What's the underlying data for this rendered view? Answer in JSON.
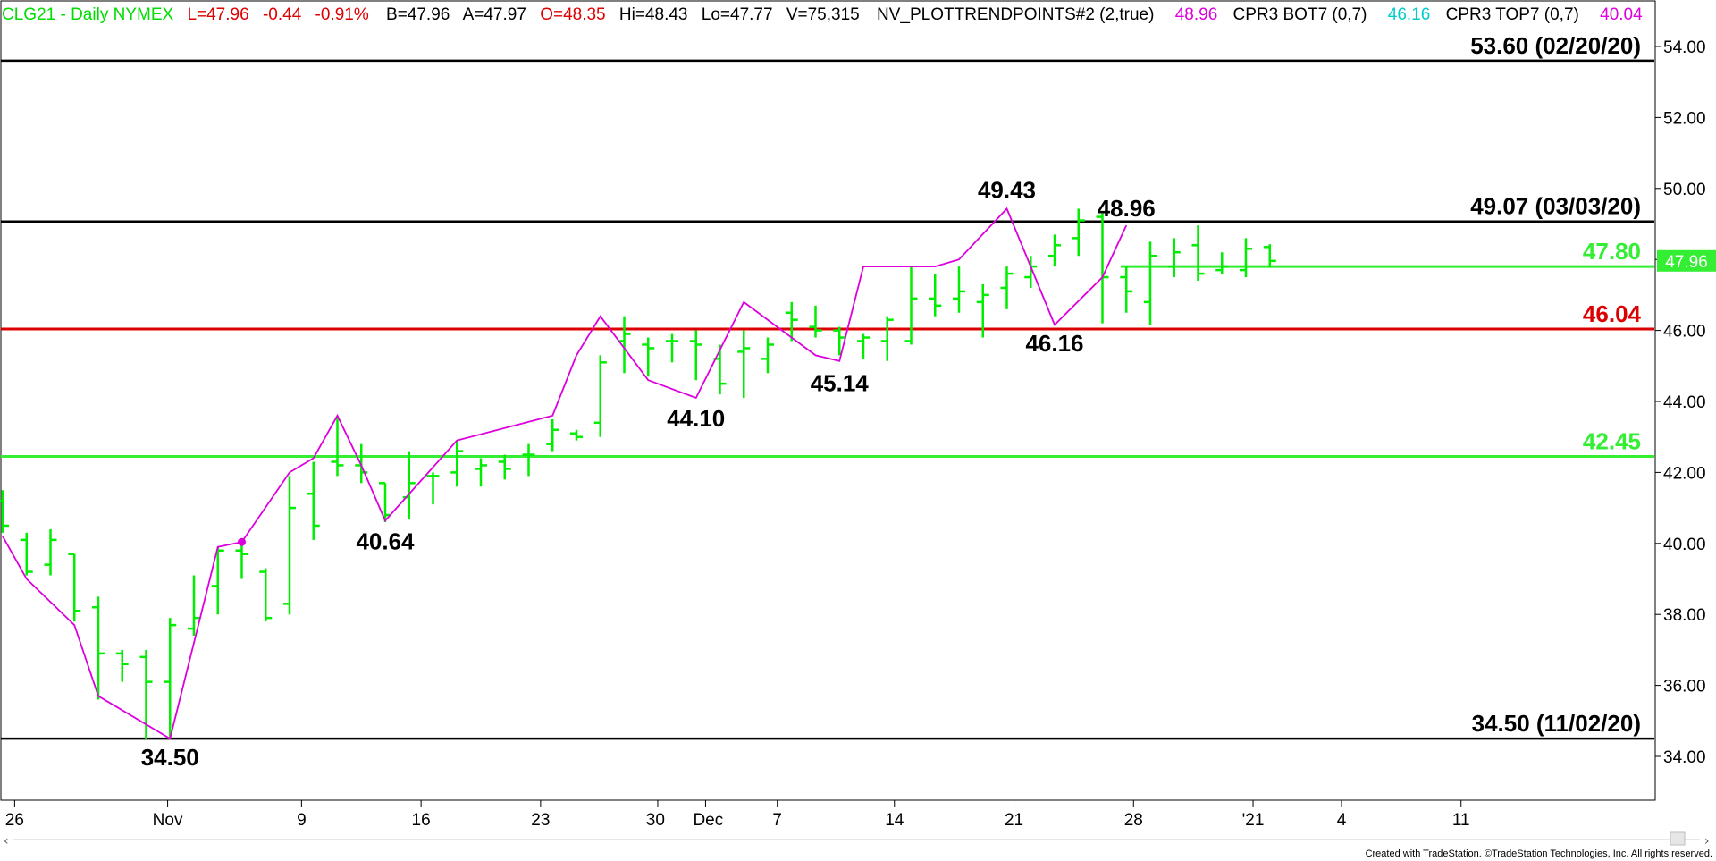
{
  "header": {
    "symbol": "CLG21 - Daily  NYMEX",
    "last": "L=47.96",
    "change": "-0.44",
    "change_pct": "-0.91%",
    "bid": "B=47.96",
    "ask": "A=47.97",
    "open": "O=48.35",
    "high": "Hi=48.43",
    "low": "Lo=47.77",
    "volume": "V=75,315",
    "study1_name": "NV_PLOTTRENDPOINTS#2 (2,true)",
    "study1_value": "48.96",
    "study2_name": "CPR3 BOT7 (0,7)",
    "study2_value": "46.16",
    "study3_name": "CPR3 TOP7 (0,7)",
    "study3_value": "40.04"
  },
  "footer": {
    "credit": "Created with TradeStation. ©TradeStation Technologies, Inc. All rights reserved."
  },
  "colors": {
    "bars": "#00ee00",
    "zigzag": "#dd00dd",
    "support_line": "#dd0000",
    "green_line": "#33ee33",
    "black_line": "#000000",
    "last_price_box": "#33ee33",
    "header_red": "#dd0000",
    "header_magenta": "#dd00dd",
    "header_cyan": "#00cccc"
  },
  "chart_data": {
    "type": "ohlc",
    "ylim": [
      33.0,
      55.5
    ],
    "y_ticks": [
      "34.00",
      "36.00",
      "38.00",
      "40.00",
      "42.00",
      "44.00",
      "46.00",
      "48.00",
      "50.00",
      "52.00",
      "54.00"
    ],
    "x_ticks": [
      "26",
      "Nov",
      "9",
      "16",
      "23",
      "30",
      "Dec",
      "7",
      "14",
      "21",
      "28",
      "'21",
      "4",
      "11"
    ],
    "last_price_label": "47.96",
    "bars": [
      {
        "o": 41.2,
        "h": 41.5,
        "l": 40.3,
        "c": 40.5
      },
      {
        "o": 40.1,
        "h": 40.3,
        "l": 39.1,
        "c": 39.2
      },
      {
        "o": 39.4,
        "h": 40.4,
        "l": 39.1,
        "c": 40.1
      },
      {
        "o": 39.7,
        "h": 39.7,
        "l": 37.8,
        "c": 38.1
      },
      {
        "o": 38.2,
        "h": 38.5,
        "l": 35.6,
        "c": 36.9
      },
      {
        "o": 36.9,
        "h": 37.0,
        "l": 36.1,
        "c": 36.6
      },
      {
        "o": 36.8,
        "h": 37.0,
        "l": 34.5,
        "c": 36.1
      },
      {
        "o": 36.1,
        "h": 37.9,
        "l": 34.5,
        "c": 37.7
      },
      {
        "o": 37.6,
        "h": 39.1,
        "l": 37.4,
        "c": 37.9
      },
      {
        "o": 38.8,
        "h": 39.9,
        "l": 38.0,
        "c": 39.8
      },
      {
        "o": 39.8,
        "h": 40.0,
        "l": 39.0,
        "c": 39.7
      },
      {
        "o": 39.2,
        "h": 39.3,
        "l": 37.8,
        "c": 37.9
      },
      {
        "o": 38.3,
        "h": 41.9,
        "l": 38.0,
        "c": 41.0
      },
      {
        "o": 41.4,
        "h": 42.3,
        "l": 40.1,
        "c": 40.5
      },
      {
        "o": 42.3,
        "h": 43.6,
        "l": 41.9,
        "c": 42.2
      },
      {
        "o": 42.2,
        "h": 42.8,
        "l": 41.7,
        "c": 42.0
      },
      {
        "o": 41.7,
        "h": 41.7,
        "l": 40.6,
        "c": 40.8
      },
      {
        "o": 41.3,
        "h": 42.6,
        "l": 40.7,
        "c": 41.7
      },
      {
        "o": 41.9,
        "h": 42.0,
        "l": 41.1,
        "c": 41.9
      },
      {
        "o": 42.0,
        "h": 42.9,
        "l": 41.6,
        "c": 42.6
      },
      {
        "o": 42.1,
        "h": 42.4,
        "l": 41.6,
        "c": 42.2
      },
      {
        "o": 42.3,
        "h": 42.5,
        "l": 41.8,
        "c": 42.1
      },
      {
        "o": 42.5,
        "h": 42.8,
        "l": 41.9,
        "c": 42.5
      },
      {
        "o": 42.8,
        "h": 43.5,
        "l": 42.6,
        "c": 43.2
      },
      {
        "o": 43.1,
        "h": 43.2,
        "l": 42.9,
        "c": 43.0
      },
      {
        "o": 43.4,
        "h": 45.3,
        "l": 43.0,
        "c": 45.1
      },
      {
        "o": 45.7,
        "h": 46.4,
        "l": 44.8,
        "c": 45.9
      },
      {
        "o": 45.6,
        "h": 45.8,
        "l": 44.7,
        "c": 45.5
      },
      {
        "o": 45.7,
        "h": 45.9,
        "l": 45.1,
        "c": 45.7
      },
      {
        "o": 45.7,
        "h": 46.0,
        "l": 44.6,
        "c": 45.6
      },
      {
        "o": 45.2,
        "h": 45.6,
        "l": 44.2,
        "c": 44.5
      },
      {
        "o": 45.4,
        "h": 46.0,
        "l": 44.1,
        "c": 45.5
      },
      {
        "o": 45.2,
        "h": 45.8,
        "l": 44.8,
        "c": 45.6
      },
      {
        "o": 46.5,
        "h": 46.8,
        "l": 45.7,
        "c": 46.3
      },
      {
        "o": 46.1,
        "h": 46.7,
        "l": 45.8,
        "c": 46.0
      },
      {
        "o": 46.0,
        "h": 46.1,
        "l": 45.3,
        "c": 45.8
      },
      {
        "o": 45.7,
        "h": 45.9,
        "l": 45.2,
        "c": 45.8
      },
      {
        "o": 45.7,
        "h": 46.4,
        "l": 45.14,
        "c": 46.3
      },
      {
        "o": 45.7,
        "h": 47.8,
        "l": 45.6,
        "c": 46.9
      },
      {
        "o": 46.9,
        "h": 47.6,
        "l": 46.4,
        "c": 46.7
      },
      {
        "o": 46.9,
        "h": 47.8,
        "l": 46.5,
        "c": 47.1
      },
      {
        "o": 46.8,
        "h": 47.3,
        "l": 45.8,
        "c": 47.0
      },
      {
        "o": 47.2,
        "h": 47.8,
        "l": 46.6,
        "c": 47.6
      },
      {
        "o": 47.5,
        "h": 48.1,
        "l": 47.2,
        "c": 47.8
      },
      {
        "o": 48.1,
        "h": 48.7,
        "l": 47.8,
        "c": 48.4
      },
      {
        "o": 48.6,
        "h": 49.43,
        "l": 48.1,
        "c": 49.1
      },
      {
        "o": 49.2,
        "h": 49.3,
        "l": 46.2,
        "c": 47.5
      },
      {
        "o": 47.5,
        "h": 47.8,
        "l": 46.5,
        "c": 47.1
      },
      {
        "o": 46.8,
        "h": 48.5,
        "l": 46.16,
        "c": 48.1
      },
      {
        "o": 47.8,
        "h": 48.6,
        "l": 47.5,
        "c": 48.2
      },
      {
        "o": 48.4,
        "h": 48.96,
        "l": 47.4,
        "c": 47.6
      },
      {
        "o": 47.7,
        "h": 48.2,
        "l": 47.6,
        "c": 47.8
      },
      {
        "o": 47.7,
        "h": 48.6,
        "l": 47.5,
        "c": 48.3
      },
      {
        "o": 48.35,
        "h": 48.43,
        "l": 47.77,
        "c": 47.96
      }
    ],
    "zigzag": [
      {
        "bar": 0,
        "price": 40.2
      },
      {
        "bar": 1,
        "price": 39.0
      },
      {
        "bar": 3,
        "price": 37.7
      },
      {
        "bar": 4,
        "price": 35.7
      },
      {
        "bar": 7,
        "price": 34.5
      },
      {
        "bar": 9,
        "price": 39.9
      },
      {
        "bar": 10,
        "price": 40.04
      },
      {
        "bar": 12,
        "price": 42.0
      },
      {
        "bar": 13,
        "price": 42.4
      },
      {
        "bar": 14,
        "price": 43.6
      },
      {
        "bar": 15,
        "price": 42.2
      },
      {
        "bar": 16,
        "price": 40.64
      },
      {
        "bar": 19,
        "price": 42.9
      },
      {
        "bar": 23,
        "price": 43.6
      },
      {
        "bar": 24,
        "price": 45.3
      },
      {
        "bar": 25,
        "price": 46.4
      },
      {
        "bar": 27,
        "price": 44.6
      },
      {
        "bar": 29,
        "price": 44.1
      },
      {
        "bar": 31,
        "price": 46.8
      },
      {
        "bar": 34,
        "price": 45.3
      },
      {
        "bar": 35,
        "price": 45.14
      },
      {
        "bar": 36,
        "price": 47.8
      },
      {
        "bar": 39,
        "price": 47.8
      },
      {
        "bar": 40,
        "price": 48.0
      },
      {
        "bar": 42,
        "price": 49.43
      },
      {
        "bar": 43,
        "price": 47.8
      },
      {
        "bar": 44,
        "price": 46.16
      },
      {
        "bar": 46,
        "price": 47.5
      },
      {
        "bar": 47,
        "price": 48.96
      }
    ],
    "hlines": [
      {
        "value": 53.6,
        "label": "53.60 (02/20/20)",
        "kind": "black"
      },
      {
        "value": 49.07,
        "label": "49.07 (03/03/20)",
        "kind": "black"
      },
      {
        "value": 47.8,
        "label": "47.80",
        "kind": "green_short"
      },
      {
        "value": 46.04,
        "label": "46.04",
        "kind": "red"
      },
      {
        "value": 42.45,
        "label": "42.45",
        "kind": "green"
      },
      {
        "value": 34.5,
        "label": "34.50  (11/02/20)",
        "kind": "black"
      }
    ],
    "annotations": [
      {
        "text": "34.50",
        "value": 34.5
      },
      {
        "text": "40.64",
        "value": 40.64
      },
      {
        "text": "44.10",
        "value": 44.1
      },
      {
        "text": "45.14",
        "value": 45.14
      },
      {
        "text": "49.43",
        "value": 49.43
      },
      {
        "text": "46.16",
        "value": 46.16
      },
      {
        "text": "48.96",
        "value": 48.96
      }
    ]
  }
}
